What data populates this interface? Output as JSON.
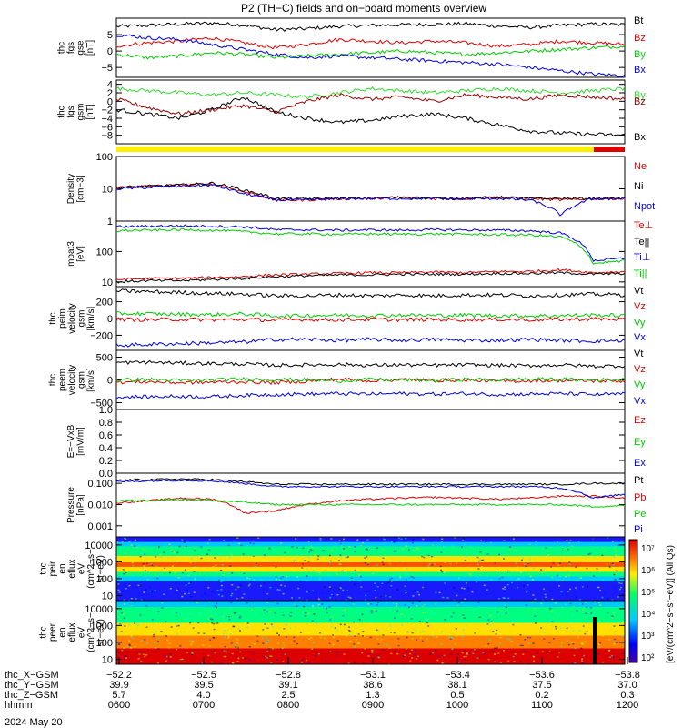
{
  "title": "P2 (TH−C) fields and on−board moments overview",
  "date_label": "2024 May 20",
  "chart_data": [
    {
      "type": "line",
      "id": "fgs-gse",
      "ylabel": [
        "thc",
        "fgs",
        "gse",
        "[nT]"
      ],
      "ylim": [
        -8,
        10
      ],
      "yticks": [
        "5",
        "0",
        "−5"
      ],
      "ytick_values": [
        5,
        0,
        -5
      ],
      "series": [
        {
          "name": "Bt",
          "color": "#000000",
          "values": [
            7.5,
            7.8,
            8.2,
            8.5,
            7.9,
            6.5,
            6.8,
            7.5,
            7.8,
            8.0,
            8.1,
            8.3,
            7.6,
            7.2,
            7.8,
            8.2,
            8.0
          ]
        },
        {
          "name": "Bz",
          "color": "#dd0000",
          "values": [
            1.5,
            2.5,
            3.0,
            4.0,
            2.5,
            1.0,
            2.0,
            3.5,
            3.0,
            2.5,
            3.0,
            2.5,
            1.5,
            2.0,
            3.0,
            2.5,
            2.0
          ]
        },
        {
          "name": "By",
          "color": "#00cc00",
          "values": [
            -1.0,
            -2.0,
            -1.5,
            -0.5,
            -1.0,
            -2.0,
            -1.5,
            -1.0,
            -0.5,
            0.0,
            -0.5,
            -1.0,
            -0.5,
            0.0,
            0.5,
            1.0,
            1.5
          ]
        },
        {
          "name": "Bx",
          "color": "#0000dd",
          "values": [
            5.0,
            4.0,
            3.5,
            2.0,
            0.5,
            -1.0,
            -2.0,
            -1.5,
            -2.0,
            -2.5,
            -3.0,
            -3.5,
            -4.0,
            -5.0,
            -6.0,
            -7.0,
            -7.5
          ]
        }
      ]
    },
    {
      "type": "line",
      "id": "fgs-gsm",
      "ylabel": [
        "thc",
        "fgs",
        "gsm",
        "[nT]"
      ],
      "ylim": [
        -10,
        5
      ],
      "yticks": [
        "4",
        "2",
        "0",
        "−2",
        "−4",
        "−6",
        "−8"
      ],
      "ytick_values": [
        4,
        2,
        0,
        -2,
        -4,
        -6,
        -8
      ],
      "series": [
        {
          "name": "By",
          "color": "#33dd33",
          "values": [
            3.0,
            2.5,
            2.0,
            1.5,
            2.0,
            1.5,
            1.0,
            2.0,
            3.0,
            2.5,
            2.0,
            2.5,
            3.0,
            2.5,
            2.0,
            2.5,
            3.0
          ]
        },
        {
          "name": "Bz",
          "color": "#990000",
          "values": [
            0.5,
            -1.5,
            -3.0,
            -2.0,
            -1.0,
            -2.5,
            0.0,
            1.5,
            0.5,
            1.0,
            0.0,
            1.5,
            1.0,
            0.5,
            1.5,
            1.0,
            0.5
          ]
        },
        {
          "name": "Bx",
          "color": "#000000",
          "values": [
            -2.0,
            -3.0,
            -4.0,
            -2.0,
            1.0,
            -2.5,
            -4.0,
            -5.0,
            -4.5,
            -3.5,
            -3.0,
            -4.0,
            -5.5,
            -7.0,
            -7.5,
            -7.8,
            -8.0
          ]
        }
      ]
    },
    {
      "type": "line",
      "id": "density",
      "log": true,
      "ylabel": [
        "Density",
        "[cm−3]"
      ],
      "ylim": [
        1,
        100
      ],
      "yticks": [
        "100",
        "10",
        "1"
      ],
      "ytick_values": [
        100,
        10,
        1
      ],
      "series": [
        {
          "name": "Ne",
          "color": "#dd0000",
          "values": [
            11,
            12,
            13,
            14,
            8,
            4.5,
            4.5,
            5,
            5,
            5.5,
            5,
            5,
            5.5,
            5,
            4.5,
            5,
            5
          ]
        },
        {
          "name": "Ni",
          "color": "#000000",
          "values": [
            11,
            12,
            13,
            15,
            9,
            5,
            5,
            5,
            5,
            5.5,
            5,
            5,
            5.5,
            5,
            5,
            5,
            5
          ]
        },
        {
          "name": "Npot",
          "color": "#0000dd",
          "values": [
            10,
            11,
            12,
            13,
            7,
            4.5,
            4.5,
            5,
            5,
            5,
            5,
            5,
            5,
            4.5,
            1.5,
            5,
            5
          ]
        }
      ]
    },
    {
      "type": "line",
      "id": "temperature",
      "log": true,
      "ylabel": [
        "moat3",
        "[eV]"
      ],
      "ylim": [
        7,
        1000
      ],
      "yticks": [
        "100",
        "10"
      ],
      "ytick_values": [
        100,
        10
      ],
      "series": [
        {
          "name": "Te⊥",
          "color": "#dd0000",
          "values": [
            12,
            13,
            13,
            14,
            15,
            17,
            18,
            19,
            20,
            20,
            21,
            20,
            22,
            22,
            25,
            20,
            22
          ]
        },
        {
          "name": "Te||",
          "color": "#000000",
          "values": [
            10,
            11,
            11,
            12,
            13,
            15,
            16,
            17,
            17,
            18,
            18,
            18,
            19,
            19,
            20,
            18,
            19
          ]
        },
        {
          "name": "Ti⊥",
          "color": "#0000dd",
          "values": [
            650,
            680,
            700,
            680,
            650,
            520,
            520,
            500,
            510,
            500,
            520,
            510,
            500,
            480,
            400,
            50,
            60
          ]
        },
        {
          "name": "Ti||",
          "color": "#00cc00",
          "values": [
            480,
            500,
            520,
            500,
            450,
            380,
            380,
            370,
            380,
            370,
            380,
            370,
            360,
            350,
            300,
            40,
            50
          ]
        }
      ]
    },
    {
      "type": "line",
      "id": "peim-velocity",
      "ylabel": [
        "thc",
        "peim",
        "velocity",
        "gsm",
        "[km/s]"
      ],
      "ylim": [
        -380,
        380
      ],
      "yticks": [
        "200",
        "0",
        "−200"
      ],
      "ytick_values": [
        200,
        0,
        -200
      ],
      "series": [
        {
          "name": "Vt",
          "color": "#000000",
          "values": [
            330,
            320,
            310,
            300,
            290,
            270,
            270,
            280,
            270,
            280,
            270,
            280,
            280,
            270,
            280,
            290,
            280
          ]
        },
        {
          "name": "Vz",
          "color": "#dd0000",
          "values": [
            -10,
            -15,
            -10,
            -15,
            -10,
            -20,
            -10,
            -15,
            -10,
            -15,
            -10,
            -15,
            -10,
            -15,
            -10,
            -5,
            -10
          ]
        },
        {
          "name": "Vy",
          "color": "#00cc00",
          "values": [
            60,
            55,
            50,
            45,
            55,
            30,
            35,
            40,
            35,
            40,
            35,
            40,
            35,
            30,
            35,
            40,
            35
          ]
        },
        {
          "name": "Vx",
          "color": "#0000dd",
          "values": [
            -320,
            -310,
            -300,
            -290,
            -280,
            -250,
            -250,
            -260,
            -250,
            -260,
            -250,
            -260,
            -260,
            -250,
            -260,
            -270,
            -260
          ]
        }
      ]
    },
    {
      "type": "line",
      "id": "peem-velocity",
      "ylabel": [
        "thc",
        "peem",
        "velocity",
        "gsm",
        "[km/s]"
      ],
      "ylim": [
        -650,
        650
      ],
      "yticks": [
        "500",
        "0",
        "−500"
      ],
      "ytick_values": [
        500,
        0,
        -500
      ],
      "series": [
        {
          "name": "Vt",
          "color": "#000000",
          "values": [
            380,
            390,
            370,
            360,
            350,
            320,
            330,
            340,
            320,
            330,
            320,
            330,
            320,
            310,
            330,
            300,
            310
          ]
        },
        {
          "name": "Vz",
          "color": "#dd0000",
          "values": [
            -50,
            -40,
            -60,
            -50,
            -40,
            -60,
            -30,
            20,
            -20,
            10,
            -10,
            0,
            -30,
            -20,
            -10,
            -20,
            -30
          ]
        },
        {
          "name": "Vy",
          "color": "#00cc00",
          "values": [
            0,
            10,
            -10,
            0,
            20,
            10,
            0,
            -20,
            10,
            0,
            -10,
            10,
            0,
            20,
            10,
            0,
            10
          ]
        },
        {
          "name": "Vx",
          "color": "#0000dd",
          "values": [
            -380,
            -370,
            -360,
            -370,
            -340,
            -320,
            -310,
            -300,
            -310,
            -300,
            -310,
            -300,
            -320,
            -310,
            -300,
            -320,
            -310
          ]
        }
      ]
    },
    {
      "type": "line",
      "id": "e-field",
      "ylabel": [
        "E=−VxB",
        "[mV/m]"
      ],
      "ylim": [
        0.0,
        1.0
      ],
      "yticks": [
        "1.0",
        "0.8",
        "0.6",
        "0.4",
        "0.2",
        "0.0"
      ],
      "ytick_values": [
        1.0,
        0.8,
        0.6,
        0.4,
        0.2,
        0.0
      ],
      "series": [
        {
          "name": "Ez",
          "color": "#dd0000",
          "values": []
        },
        {
          "name": "Ey",
          "color": "#00cc00",
          "values": []
        },
        {
          "name": "Ex",
          "color": "#0000dd",
          "values": []
        }
      ]
    },
    {
      "type": "line",
      "id": "pressure",
      "log": true,
      "ylabel": [
        "Pressure",
        "[nPa]"
      ],
      "ylim": [
        0.0003,
        0.3
      ],
      "yticks": [
        "0.100",
        "0.010",
        "0.001"
      ],
      "ytick_values": [
        0.1,
        0.01,
        0.001
      ],
      "series": [
        {
          "name": "Pt",
          "color": "#000000",
          "values": [
            0.14,
            0.15,
            0.16,
            0.15,
            0.12,
            0.09,
            0.09,
            0.09,
            0.09,
            0.09,
            0.09,
            0.09,
            0.09,
            0.09,
            0.09,
            0.1,
            0.1
          ]
        },
        {
          "name": "Pb",
          "color": "#dd0000",
          "values": [
            0.012,
            0.015,
            0.02,
            0.018,
            0.004,
            0.005,
            0.01,
            0.015,
            0.018,
            0.02,
            0.022,
            0.02,
            0.018,
            0.02,
            0.025,
            0.025,
            0.02
          ]
        },
        {
          "name": "Pe",
          "color": "#00cc00",
          "values": [
            0.015,
            0.016,
            0.017,
            0.016,
            0.013,
            0.01,
            0.01,
            0.01,
            0.01,
            0.01,
            0.01,
            0.01,
            0.01,
            0.01,
            0.01,
            0.008,
            0.009
          ]
        },
        {
          "name": "Pi",
          "color": "#0000dd",
          "values": [
            0.12,
            0.13,
            0.14,
            0.13,
            0.1,
            0.07,
            0.07,
            0.07,
            0.07,
            0.07,
            0.07,
            0.07,
            0.07,
            0.07,
            0.06,
            0.02,
            0.03
          ]
        }
      ]
    },
    {
      "type": "heatmap",
      "id": "peir-spectrogram",
      "ylabel": [
        "thc",
        "peir",
        "en",
        "eflux",
        "eV",
        "(cm^2−s−",
        "sr−eV)"
      ],
      "yticks": [
        "10000",
        "1000",
        "100",
        "10"
      ],
      "ytick_values": [
        10000,
        1000,
        100,
        10
      ]
    },
    {
      "type": "heatmap",
      "id": "peer-spectrogram",
      "ylabel": [
        "thc",
        "peer",
        "en",
        "eflux",
        "eV",
        "(cm^2−s−",
        "sr−eV)"
      ],
      "yticks": [
        "10000",
        "1000",
        "100",
        "10"
      ],
      "ytick_values": [
        10000,
        1000,
        100,
        10
      ]
    }
  ],
  "colorbar": {
    "label": "[eV/(cm^2−s−sr−eV)] (All Qs)",
    "ticks": [
      "10⁷",
      "10⁶",
      "10⁵",
      "10⁴",
      "10³",
      "10²"
    ]
  },
  "x_axis": {
    "rows": [
      {
        "label": "thc_X−GSM",
        "values": [
          "−52.2",
          "−52.5",
          "−52.8",
          "−53.1",
          "−53.4",
          "−53.6",
          "−53.8"
        ]
      },
      {
        "label": "thc_Y−GSM",
        "values": [
          "39.9",
          "39.5",
          "39.1",
          "38.6",
          "38.1",
          "37.5",
          "37.0"
        ]
      },
      {
        "label": "thc_Z−GSM",
        "values": [
          "5.7",
          "4.0",
          "2.5",
          "1.3",
          "0.5",
          "0.2",
          "0.3"
        ]
      },
      {
        "label": "hhmm",
        "values": [
          "0600",
          "0700",
          "0800",
          "0900",
          "1000",
          "1100",
          "1200"
        ]
      }
    ]
  },
  "colors": {
    "yellow_bar": "#ffee00",
    "red_bar": "#dd0000"
  }
}
